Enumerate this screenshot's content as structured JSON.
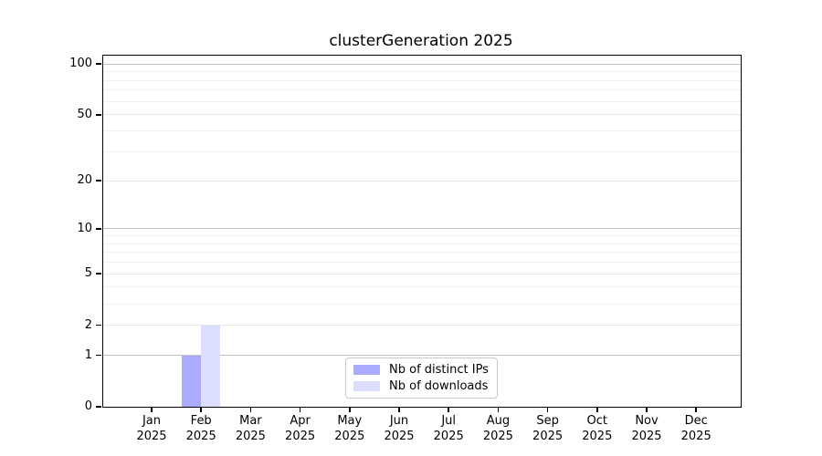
{
  "chart_data": {
    "type": "bar",
    "title": "clusterGeneration 2025",
    "x_categories": [
      "Jan",
      "Feb",
      "Mar",
      "Apr",
      "May",
      "Jun",
      "Jul",
      "Aug",
      "Sep",
      "Oct",
      "Nov",
      "Dec"
    ],
    "x_year": "2025",
    "series": [
      {
        "name": "Nb of distinct IPs",
        "color": "#aaaaff",
        "values": [
          0,
          1,
          0,
          0,
          0,
          0,
          0,
          0,
          0,
          0,
          0,
          0
        ]
      },
      {
        "name": "Nb of downloads",
        "color": "#ddddff",
        "values": [
          0,
          2,
          0,
          0,
          0,
          0,
          0,
          0,
          0,
          0,
          0,
          0
        ]
      }
    ],
    "y_scale": "log10(1+v)",
    "ylim": [
      0,
      112
    ],
    "y_ticks": [
      0,
      1,
      2,
      5,
      10,
      20,
      50,
      100
    ],
    "y_minor_gridlines": [
      3,
      4,
      6,
      7,
      8,
      9,
      30,
      40,
      60,
      70,
      80,
      90
    ],
    "y_emphasized_gridlines": [
      1,
      10,
      100
    ],
    "grid": "horizontal",
    "legend_position": "bottom-center",
    "colors": {
      "emphasized_gridline": "#c3c3c3",
      "major_gridline": "#e7e7e7",
      "minor_gridline": "#f0f0f0",
      "axis": "#000000",
      "background": "#ffffff"
    }
  }
}
